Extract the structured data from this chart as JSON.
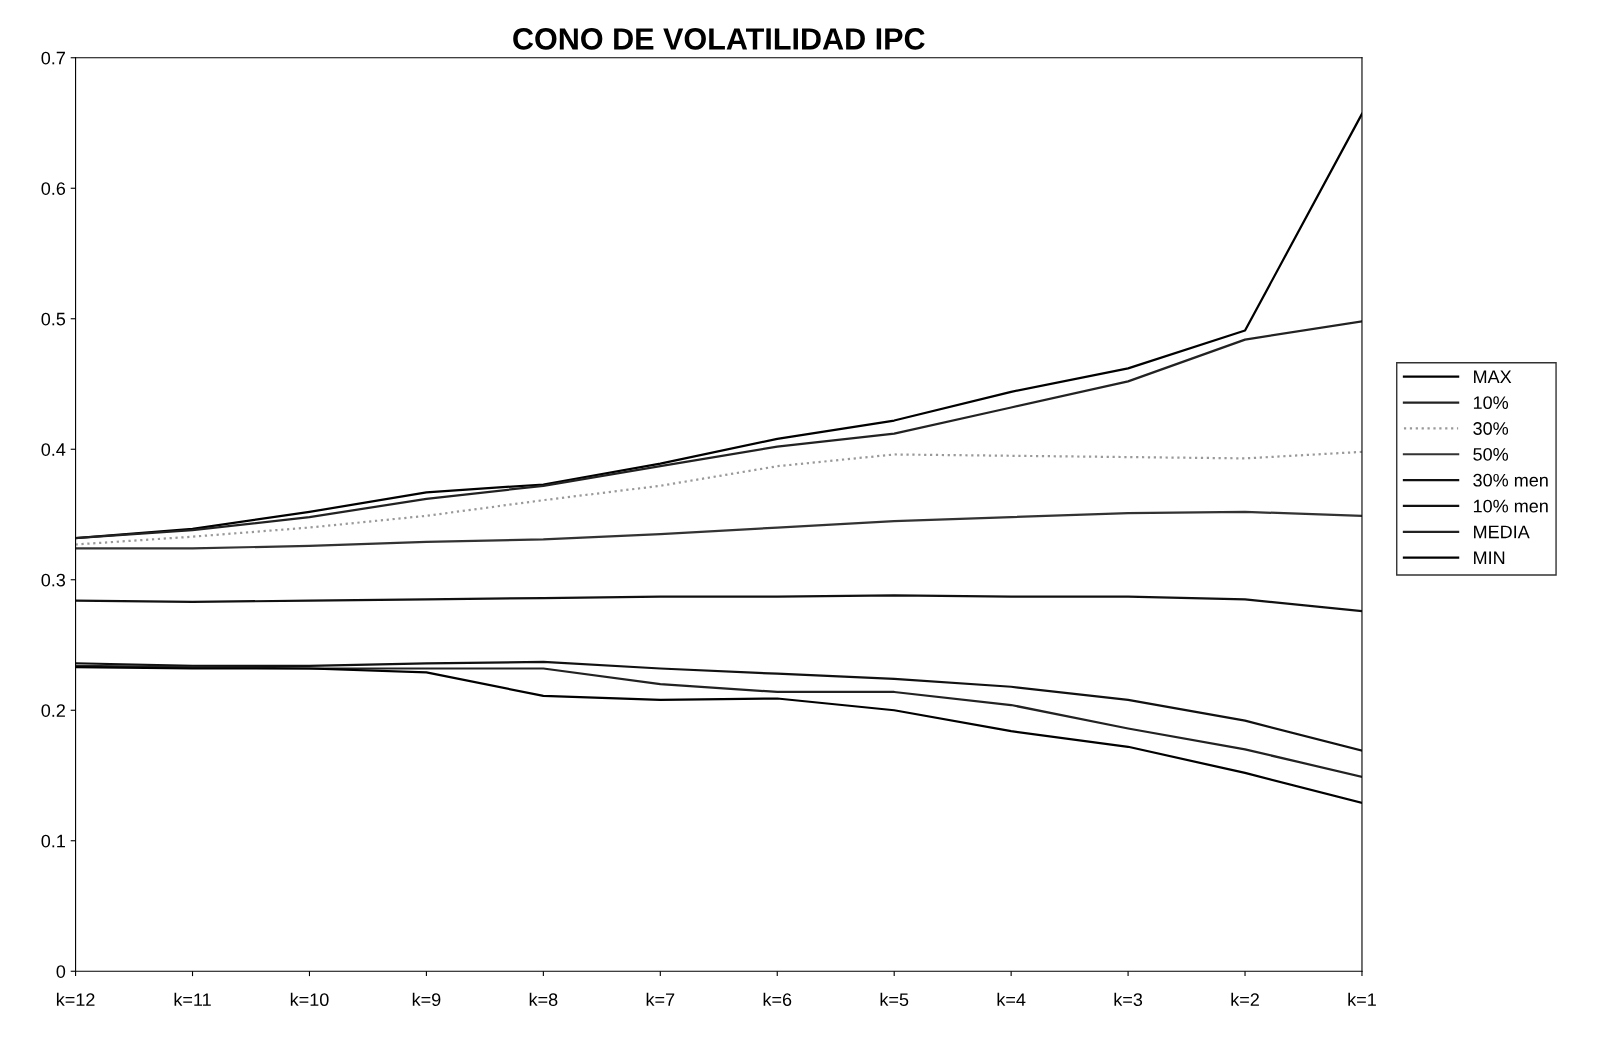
{
  "chart_data": {
    "type": "line",
    "title": "CONO DE VOLATILIDAD IPC",
    "categories": [
      "k=12",
      "k=11",
      "k=10",
      "k=9",
      "k=8",
      "k=7",
      "k=6",
      "k=5",
      "k=4",
      "k=3",
      "k=2",
      "k=1"
    ],
    "series": [
      {
        "name": "MAX",
        "color": "#000000",
        "values": [
          0.332,
          0.339,
          0.352,
          0.367,
          0.373,
          0.389,
          0.408,
          0.422,
          0.444,
          0.462,
          0.491,
          0.657
        ]
      },
      {
        "name": "10%",
        "color": "#222222",
        "values": [
          0.332,
          0.338,
          0.348,
          0.362,
          0.372,
          0.387,
          0.402,
          0.412,
          0.432,
          0.452,
          0.484,
          0.498
        ]
      },
      {
        "name": "30%",
        "color": "#999999",
        "line_style": "dotted",
        "values": [
          0.327,
          0.333,
          0.34,
          0.349,
          0.361,
          0.372,
          0.387,
          0.396,
          0.395,
          0.394,
          0.393,
          0.398
        ]
      },
      {
        "name": "50%",
        "color": "#333333",
        "values": [
          0.324,
          0.324,
          0.326,
          0.329,
          0.331,
          0.335,
          0.34,
          0.345,
          0.348,
          0.351,
          0.352,
          0.349
        ]
      },
      {
        "name": "30% men",
        "color": "#111111",
        "values": [
          0.284,
          0.283,
          0.284,
          0.285,
          0.286,
          0.287,
          0.287,
          0.288,
          0.287,
          0.287,
          0.285,
          0.276
        ]
      },
      {
        "name": "10% men",
        "color": "#111111",
        "values": [
          0.236,
          0.234,
          0.234,
          0.236,
          0.237,
          0.232,
          0.228,
          0.224,
          0.218,
          0.208,
          0.192,
          0.169
        ]
      },
      {
        "name": "MEDIA",
        "color": "#222222",
        "values": [
          0.234,
          0.233,
          0.232,
          0.232,
          0.232,
          0.22,
          0.214,
          0.214,
          0.204,
          0.186,
          0.17,
          0.149
        ]
      },
      {
        "name": "MIN",
        "color": "#000000",
        "values": [
          0.233,
          0.232,
          0.232,
          0.229,
          0.211,
          0.208,
          0.209,
          0.2,
          0.184,
          0.172,
          0.152,
          0.129
        ]
      }
    ],
    "ylim": [
      0,
      0.7
    ],
    "yticks": [
      0,
      0.1,
      0.2,
      0.3,
      0.4,
      0.5,
      0.6,
      0.7
    ],
    "grid": false,
    "legend": "right",
    "line_style": "solid"
  }
}
